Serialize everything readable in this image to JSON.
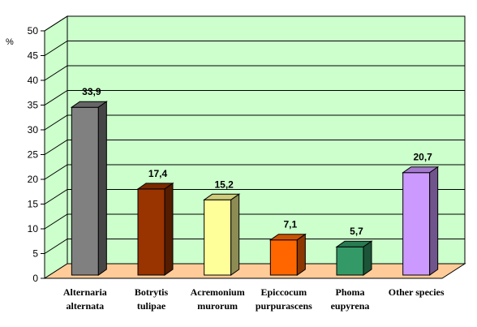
{
  "chart_data": {
    "type": "bar",
    "ylabel": "%",
    "ylim": [
      0,
      50
    ],
    "yticks": [
      "0",
      "5",
      "10",
      "15",
      "20",
      "25",
      "30",
      "35",
      "40",
      "45",
      "50"
    ],
    "grid": true,
    "style": "3d",
    "categories": [
      [
        "Alternaria",
        "alternata"
      ],
      [
        "Botrytis",
        "tulipae"
      ],
      [
        "Acremonium",
        "murorum"
      ],
      [
        "Epiccocum",
        "purpurascens"
      ],
      [
        "Phoma",
        "eupyrena"
      ],
      [
        "Other species"
      ]
    ],
    "values": [
      33.9,
      17.4,
      15.2,
      7.1,
      5.7,
      20.7
    ],
    "value_labels": [
      "33,9",
      "17,4",
      "15,2",
      "7,1",
      "5,7",
      "20,7"
    ],
    "colors": [
      "#808080",
      "#993300",
      "#ffff99",
      "#ff6600",
      "#339966",
      "#cc99ff"
    ],
    "wall_color": "#ccffcc",
    "floor_color": "#ffcc99"
  }
}
